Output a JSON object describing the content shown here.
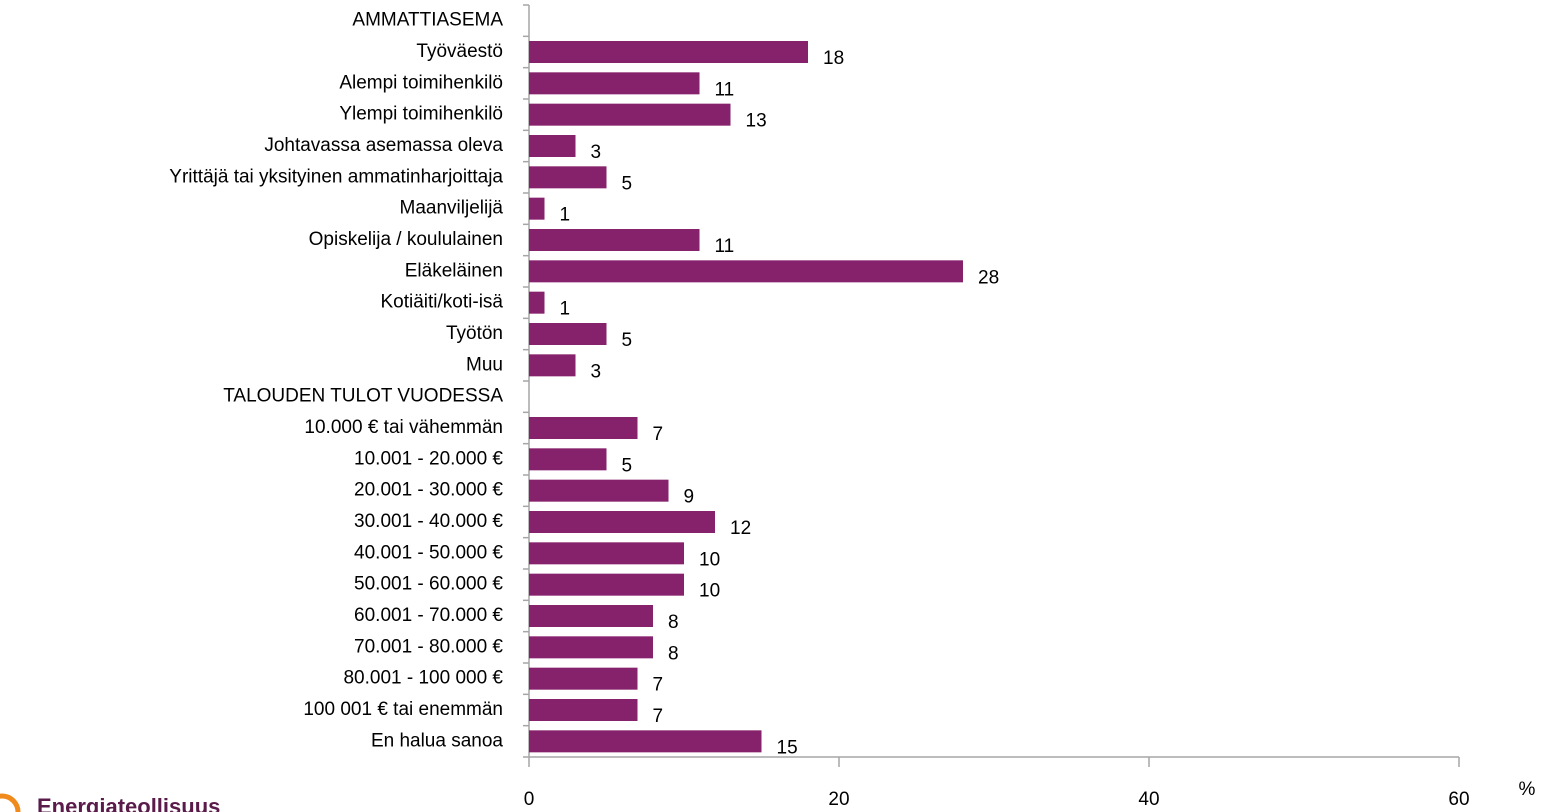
{
  "chart_data": {
    "type": "bar",
    "orientation": "horizontal",
    "color": "#86216b",
    "categories": [
      "AMMATTIASEMA",
      "Työväestö",
      "Alempi toimihenkilö",
      "Ylempi toimihenkilö",
      "Johtavassa asemassa oleva",
      "Yrittäjä tai yksityinen ammatinharjoittaja",
      "Maanviljelijä",
      "Opiskelija / koululainen",
      "Eläkeläinen",
      "Kotiäiti/koti-isä",
      "Työtön",
      "Muu",
      "TALOUDEN TULOT VUODESSA",
      "10.000 € tai vähemmän",
      "10.001 - 20.000 €",
      "20.001 - 30.000 €",
      "30.001 - 40.000 €",
      "40.001 - 50.000 €",
      "50.001 - 60.000 €",
      "60.001 - 70.000 €",
      "70.001 - 80.000 €",
      "80.001 - 100 000 €",
      "100 001 € tai enemmän",
      "En halua sanoa"
    ],
    "values": [
      null,
      18,
      11,
      13,
      3,
      5,
      1,
      11,
      28,
      1,
      5,
      3,
      null,
      7,
      5,
      9,
      12,
      10,
      10,
      8,
      8,
      7,
      7,
      15
    ],
    "xlim": [
      0,
      60
    ],
    "xticks": [
      0,
      20,
      40,
      60
    ],
    "x_label": "%"
  },
  "logo": "Energiateollisuus"
}
